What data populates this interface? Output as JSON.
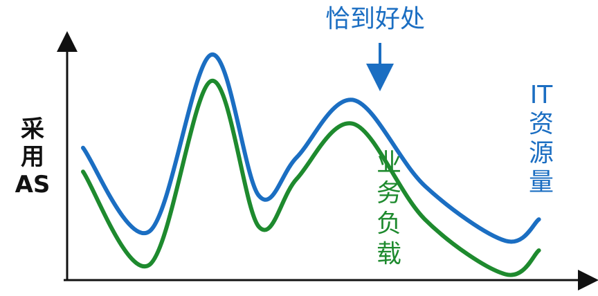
{
  "chart_data": {
    "type": "line",
    "title": "",
    "xlabel": "",
    "ylabel": "采用AS",
    "ylabel_lines": [
      "采",
      "用",
      "AS"
    ],
    "annotation": "恰到好处",
    "colors": {
      "it": "#1b6ec2",
      "business": "#1e8a2e",
      "axis": "#111111"
    },
    "xlim": [
      0,
      10
    ],
    "ylim": [
      0,
      10
    ],
    "x": [
      0,
      1.4,
      2.7,
      3.7,
      4.5,
      5.7,
      7.2,
      8.9,
      9.6
    ],
    "series": [
      {
        "name": "IT资源量",
        "label_lines": [
          "IT",
          "资",
          "源",
          "量"
        ],
        "color": "#1b6ec2",
        "values": [
          5.4,
          1.9,
          9.3,
          3.4,
          5.0,
          7.4,
          3.8,
          1.5,
          2.4
        ]
      },
      {
        "name": "业务负载",
        "label_lines": [
          "业",
          "务",
          "负",
          "载"
        ],
        "color": "#1e8a2e",
        "values": [
          4.4,
          0.5,
          8.2,
          2.1,
          4.1,
          6.4,
          2.4,
          0.1,
          1.1
        ]
      }
    ]
  }
}
